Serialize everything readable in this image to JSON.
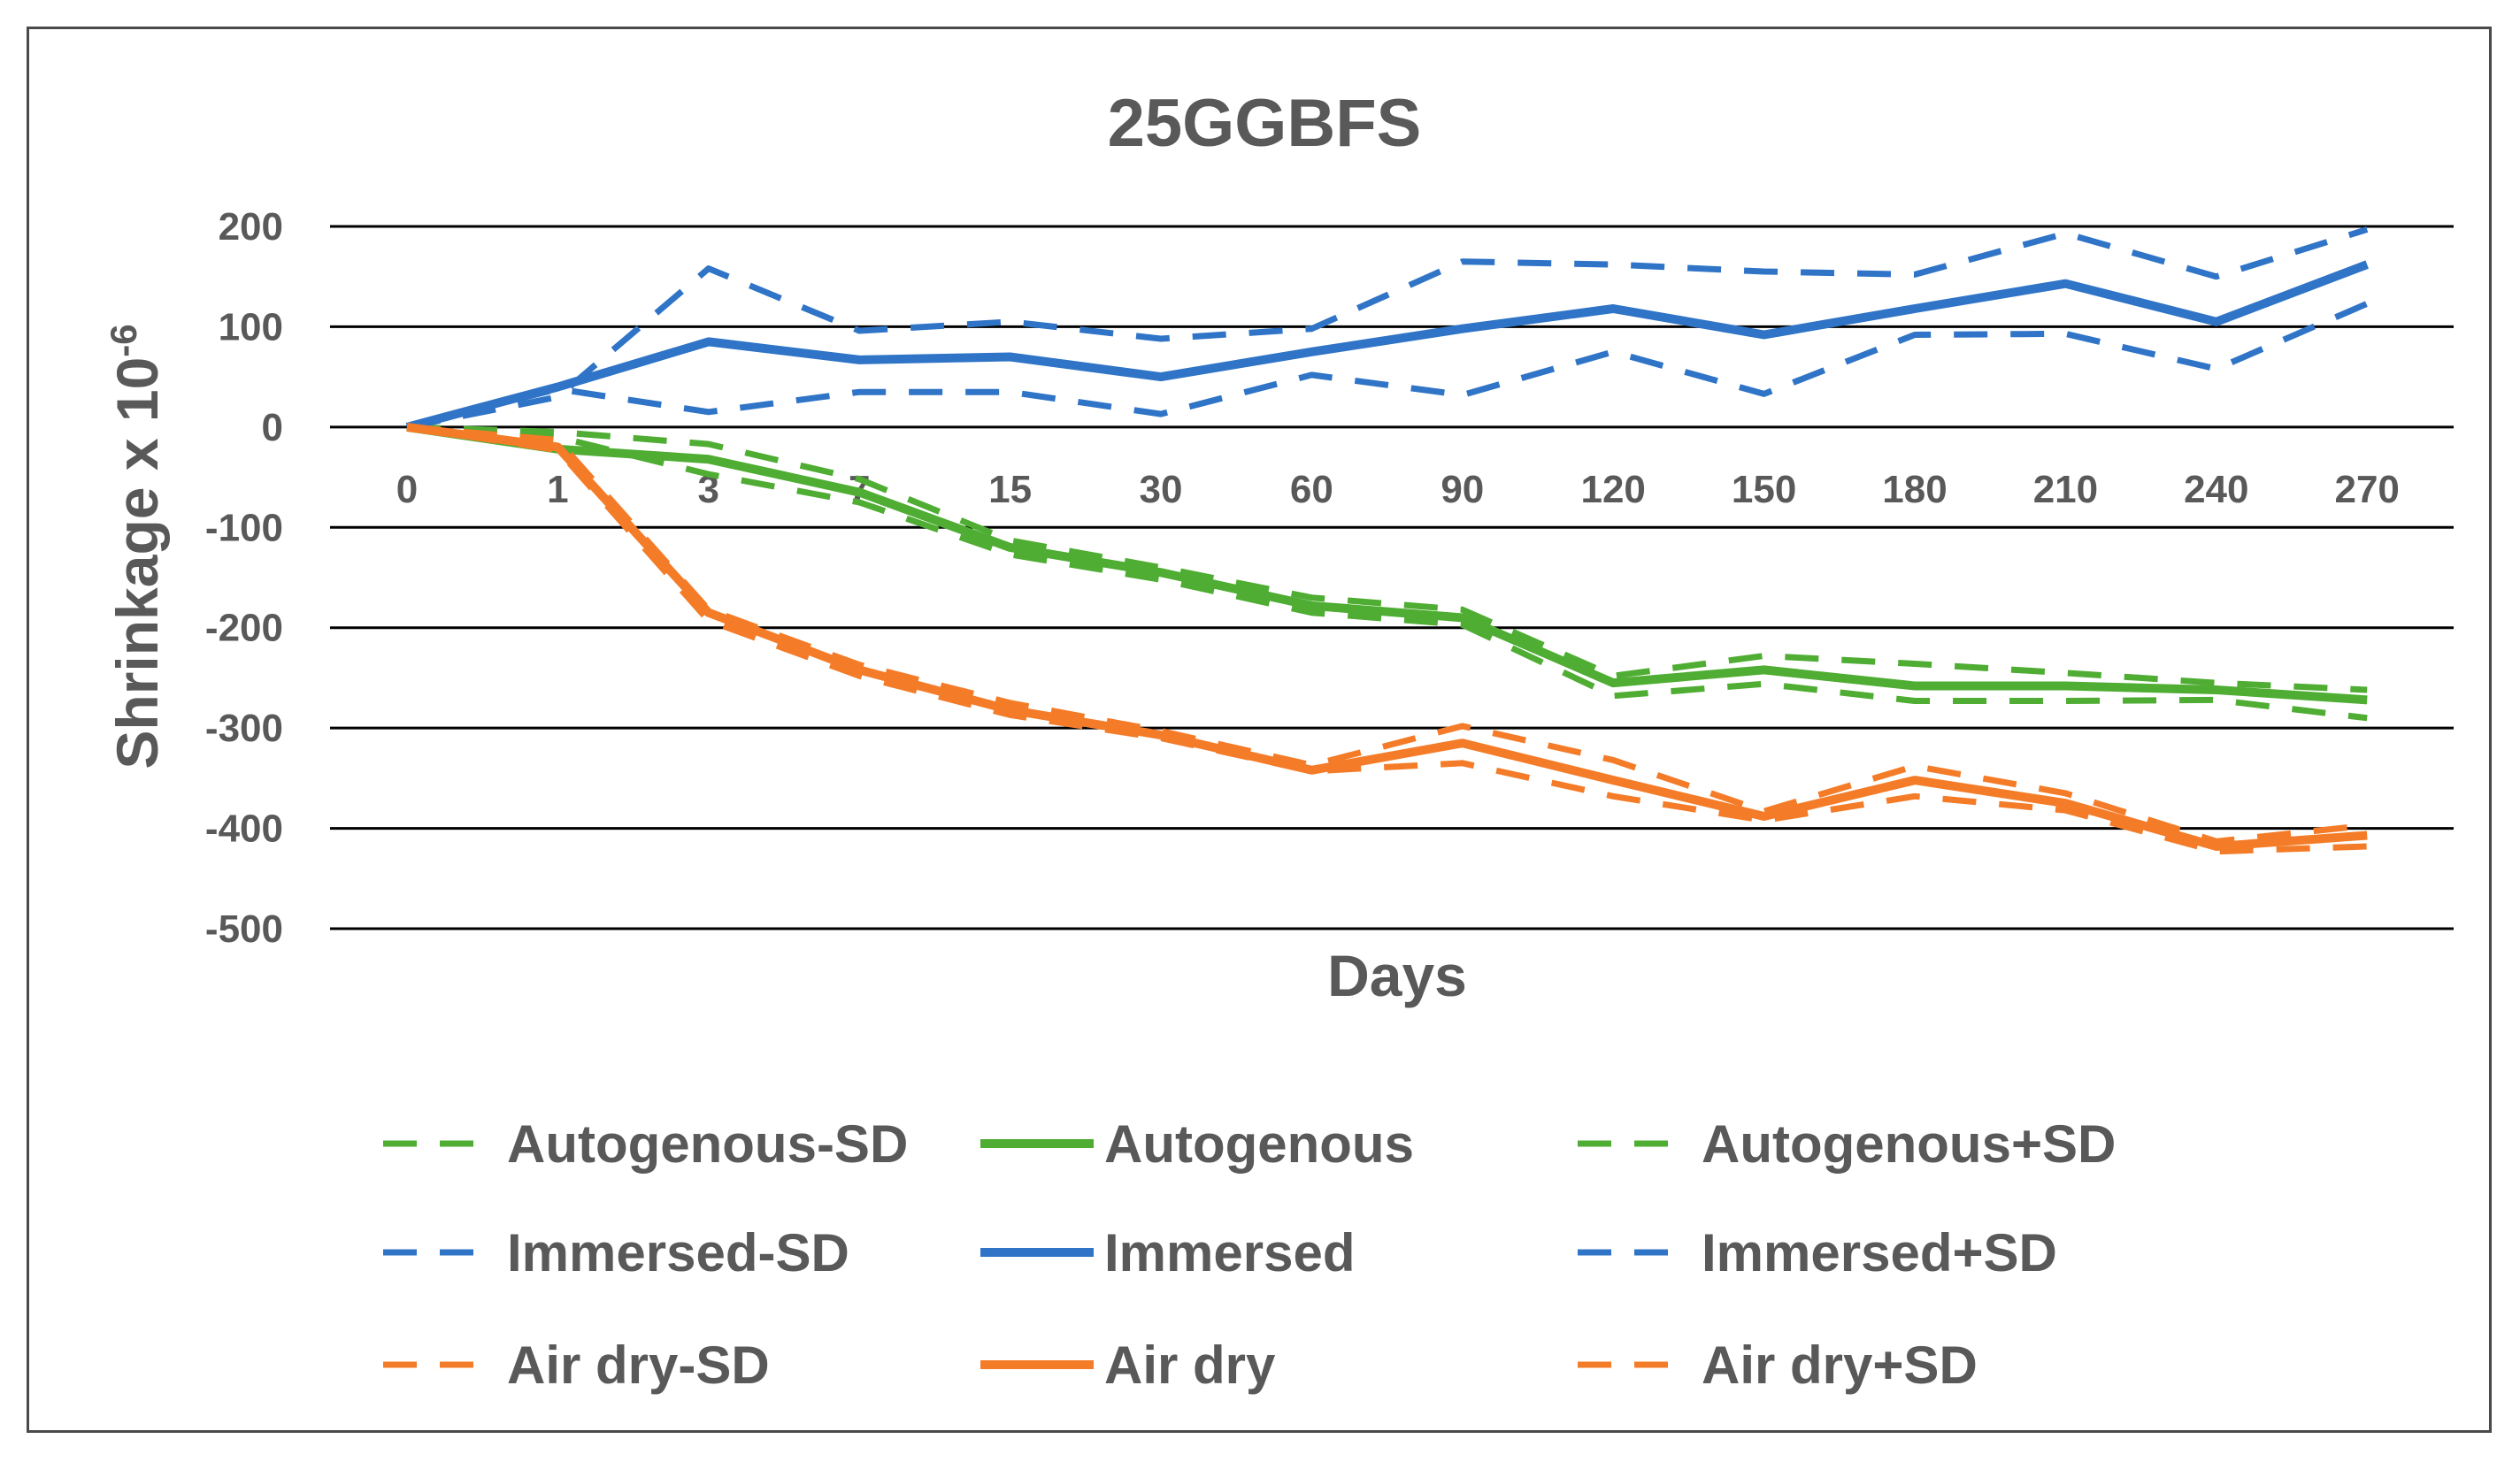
{
  "chart_data": {
    "type": "line",
    "title": "25GGBFS",
    "xlabel": "Days",
    "ylabel": "Shrinkage x 10",
    "ylabel_exponent": "-6",
    "categories": [
      "0",
      "1",
      "3",
      "7",
      "15",
      "30",
      "60",
      "90",
      "120",
      "150",
      "180",
      "210",
      "240",
      "270"
    ],
    "ylim": [
      -500,
      200
    ],
    "yticks": [
      200,
      100,
      0,
      -100,
      -200,
      -300,
      -400,
      -500
    ],
    "grid": true,
    "legend_position": "bottom",
    "colors": {
      "autogenous": "#4ead32",
      "immersed": "#2f74c6",
      "airdry": "#f47c28"
    },
    "series": [
      {
        "name": "Autogenous-SD",
        "color": "#4ead32",
        "style": "dashed",
        "values": [
          0,
          -10,
          -47,
          -75,
          -127,
          -152,
          -185,
          -197,
          -268,
          -256,
          -273,
          -273,
          -272,
          -290
        ]
      },
      {
        "name": "Autogenous",
        "color": "#4ead32",
        "style": "solid",
        "values": [
          0,
          -22,
          -32,
          -65,
          -120,
          -145,
          -178,
          -190,
          -255,
          -242,
          -258,
          -258,
          -262,
          -272
        ]
      },
      {
        "name": "Autogenous+SD",
        "color": "#4ead32",
        "style": "dashed",
        "values": [
          0,
          -5,
          -17,
          -52,
          -113,
          -140,
          -170,
          -182,
          -248,
          -228,
          -236,
          -245,
          -255,
          -262
        ]
      },
      {
        "name": "Immersed-SD",
        "color": "#2f74c6",
        "style": "dashed",
        "values": [
          0,
          38,
          15,
          35,
          35,
          13,
          52,
          32,
          75,
          33,
          92,
          93,
          58,
          123
        ]
      },
      {
        "name": "Immersed",
        "color": "#2f74c6",
        "style": "solid",
        "values": [
          0,
          40,
          85,
          67,
          70,
          50,
          75,
          98,
          118,
          92,
          118,
          143,
          105,
          162
        ]
      },
      {
        "name": "Immersed+SD",
        "color": "#2f74c6",
        "style": "dashed",
        "values": [
          0,
          30,
          158,
          96,
          105,
          88,
          98,
          165,
          162,
          155,
          152,
          193,
          150,
          197
        ]
      },
      {
        "name": "Air dry-SD",
        "color": "#f47c28",
        "style": "dashed",
        "values": [
          0,
          -23,
          -193,
          -248,
          -287,
          -310,
          -343,
          -335,
          -368,
          -392,
          -368,
          -382,
          -423,
          -418
        ]
      },
      {
        "name": "Air dry",
        "color": "#f47c28",
        "style": "solid",
        "values": [
          0,
          -20,
          -185,
          -242,
          -282,
          -307,
          -342,
          -315,
          -352,
          -388,
          -352,
          -375,
          -418,
          -407
        ]
      },
      {
        "name": "Air dry+SD",
        "color": "#f47c28",
        "style": "dashed",
        "values": [
          0,
          -13,
          -182,
          -237,
          -275,
          -303,
          -337,
          -298,
          -332,
          -383,
          -338,
          -365,
          -413,
          -397
        ]
      }
    ]
  }
}
